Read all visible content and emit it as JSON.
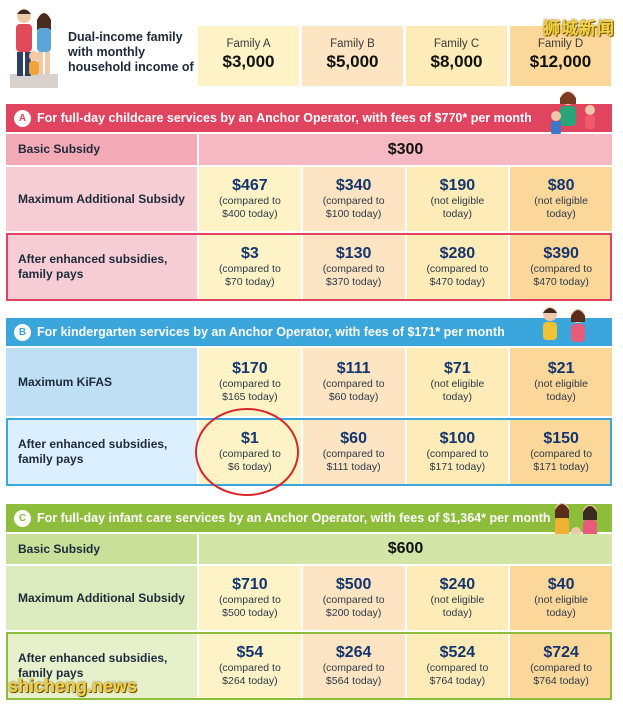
{
  "header": {
    "text": "Dual-income family with monthly household income of",
    "families": [
      {
        "name": "Family A",
        "income": "$3,000"
      },
      {
        "name": "Family B",
        "income": "$5,000"
      },
      {
        "name": "Family C",
        "income": "$8,000"
      },
      {
        "name": "Family D",
        "income": "$12,000"
      }
    ]
  },
  "brand": "狮城新闻",
  "watermark": "shicheng.news",
  "colors": {
    "col_a": "#fdf3c6",
    "col_b": "#fde4c2",
    "col_c": "#fdecb8",
    "col_d": "#fcd79a",
    "section_a": "#e0445f",
    "section_b": "#3ba6dc",
    "section_c": "#8dbd3b"
  },
  "sections": {
    "a": {
      "letter": "A",
      "title": "For full-day childcare services by an Anchor Operator, with fees of $770* per month",
      "basic_label": "Basic Subsidy",
      "basic_value": "$300",
      "max_label": "Maximum Additional Subsidy",
      "max": [
        {
          "amount": "$467",
          "note1": "(compared to",
          "note2": "$400 today)"
        },
        {
          "amount": "$340",
          "note1": "(compared to",
          "note2": "$100 today)"
        },
        {
          "amount": "$190",
          "note1": "(not eligible",
          "note2": "today)"
        },
        {
          "amount": "$80",
          "note1": "(not eligible",
          "note2": "today)"
        }
      ],
      "pays_label": "After enhanced subsidies, family pays",
      "pays": [
        {
          "amount": "$3",
          "note1": "(compared to",
          "note2": "$70 today)"
        },
        {
          "amount": "$130",
          "note1": "(compared to",
          "note2": "$370 today)"
        },
        {
          "amount": "$280",
          "note1": "(compared to",
          "note2": "$470 today)"
        },
        {
          "amount": "$390",
          "note1": "(compared to",
          "note2": "$470 today)"
        }
      ]
    },
    "b": {
      "letter": "B",
      "title": "For kindergarten services by an Anchor Operator, with fees of $171* per month",
      "max_label": "Maximum KiFAS",
      "max": [
        {
          "amount": "$170",
          "note1": "(compared to",
          "note2": "$165 today)"
        },
        {
          "amount": "$111",
          "note1": "(compared to",
          "note2": "$60 today)"
        },
        {
          "amount": "$71",
          "note1": "(not eligible",
          "note2": "today)"
        },
        {
          "amount": "$21",
          "note1": "(not eligible",
          "note2": "today)"
        }
      ],
      "pays_label": "After enhanced subsidies, family pays",
      "pays": [
        {
          "amount": "$1",
          "note1": "(compared to",
          "note2": "$6 today)"
        },
        {
          "amount": "$60",
          "note1": "(compared to",
          "note2": "$111 today)"
        },
        {
          "amount": "$100",
          "note1": "(compared to",
          "note2": "$171 today)"
        },
        {
          "amount": "$150",
          "note1": "(compared to",
          "note2": "$171 today)"
        }
      ]
    },
    "c": {
      "letter": "C",
      "title": "For full-day infant care services by an Anchor Operator, with fees of $1,364* per month",
      "basic_label": "Basic Subsidy",
      "basic_value": "$600",
      "max_label": "Maximum Additional Subsidy",
      "max": [
        {
          "amount": "$710",
          "note1": "(compared to",
          "note2": "$500 today)"
        },
        {
          "amount": "$500",
          "note1": "(compared to",
          "note2": "$200 today)"
        },
        {
          "amount": "$240",
          "note1": "(not eligible",
          "note2": "today)"
        },
        {
          "amount": "$40",
          "note1": "(not eligible",
          "note2": "today)"
        }
      ],
      "pays_label": "After enhanced subsidies, family pays",
      "pays": [
        {
          "amount": "$54",
          "note1": "(compared to",
          "note2": "$264 today)"
        },
        {
          "amount": "$264",
          "note1": "(compared to",
          "note2": "$564 today)"
        },
        {
          "amount": "$524",
          "note1": "(compared to",
          "note2": "$764 today)"
        },
        {
          "amount": "$724",
          "note1": "(compared to",
          "note2": "$764 today)"
        }
      ]
    }
  }
}
